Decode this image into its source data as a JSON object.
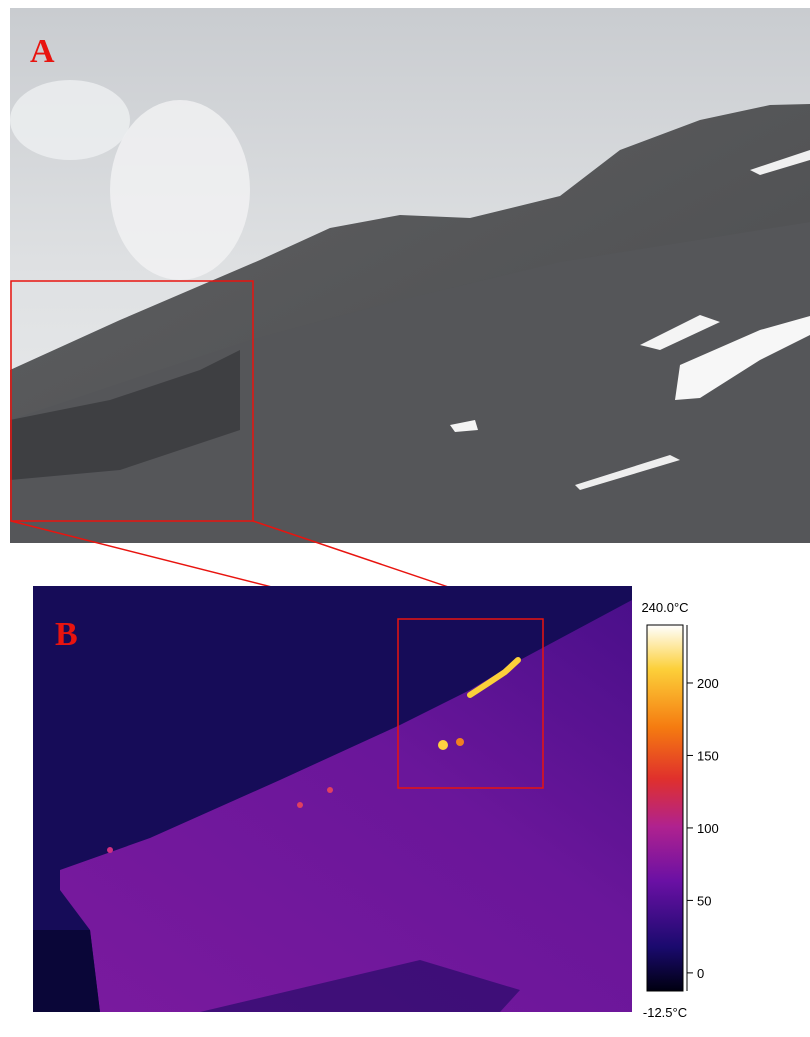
{
  "panel_a": {
    "label": "A"
  },
  "panel_b": {
    "label": "B",
    "colorbar": {
      "max_label": "240.0°C",
      "min_label": "-12.5°C",
      "range": [
        -12.5,
        240
      ],
      "ticks": [
        0,
        50,
        100,
        150,
        200
      ]
    }
  }
}
